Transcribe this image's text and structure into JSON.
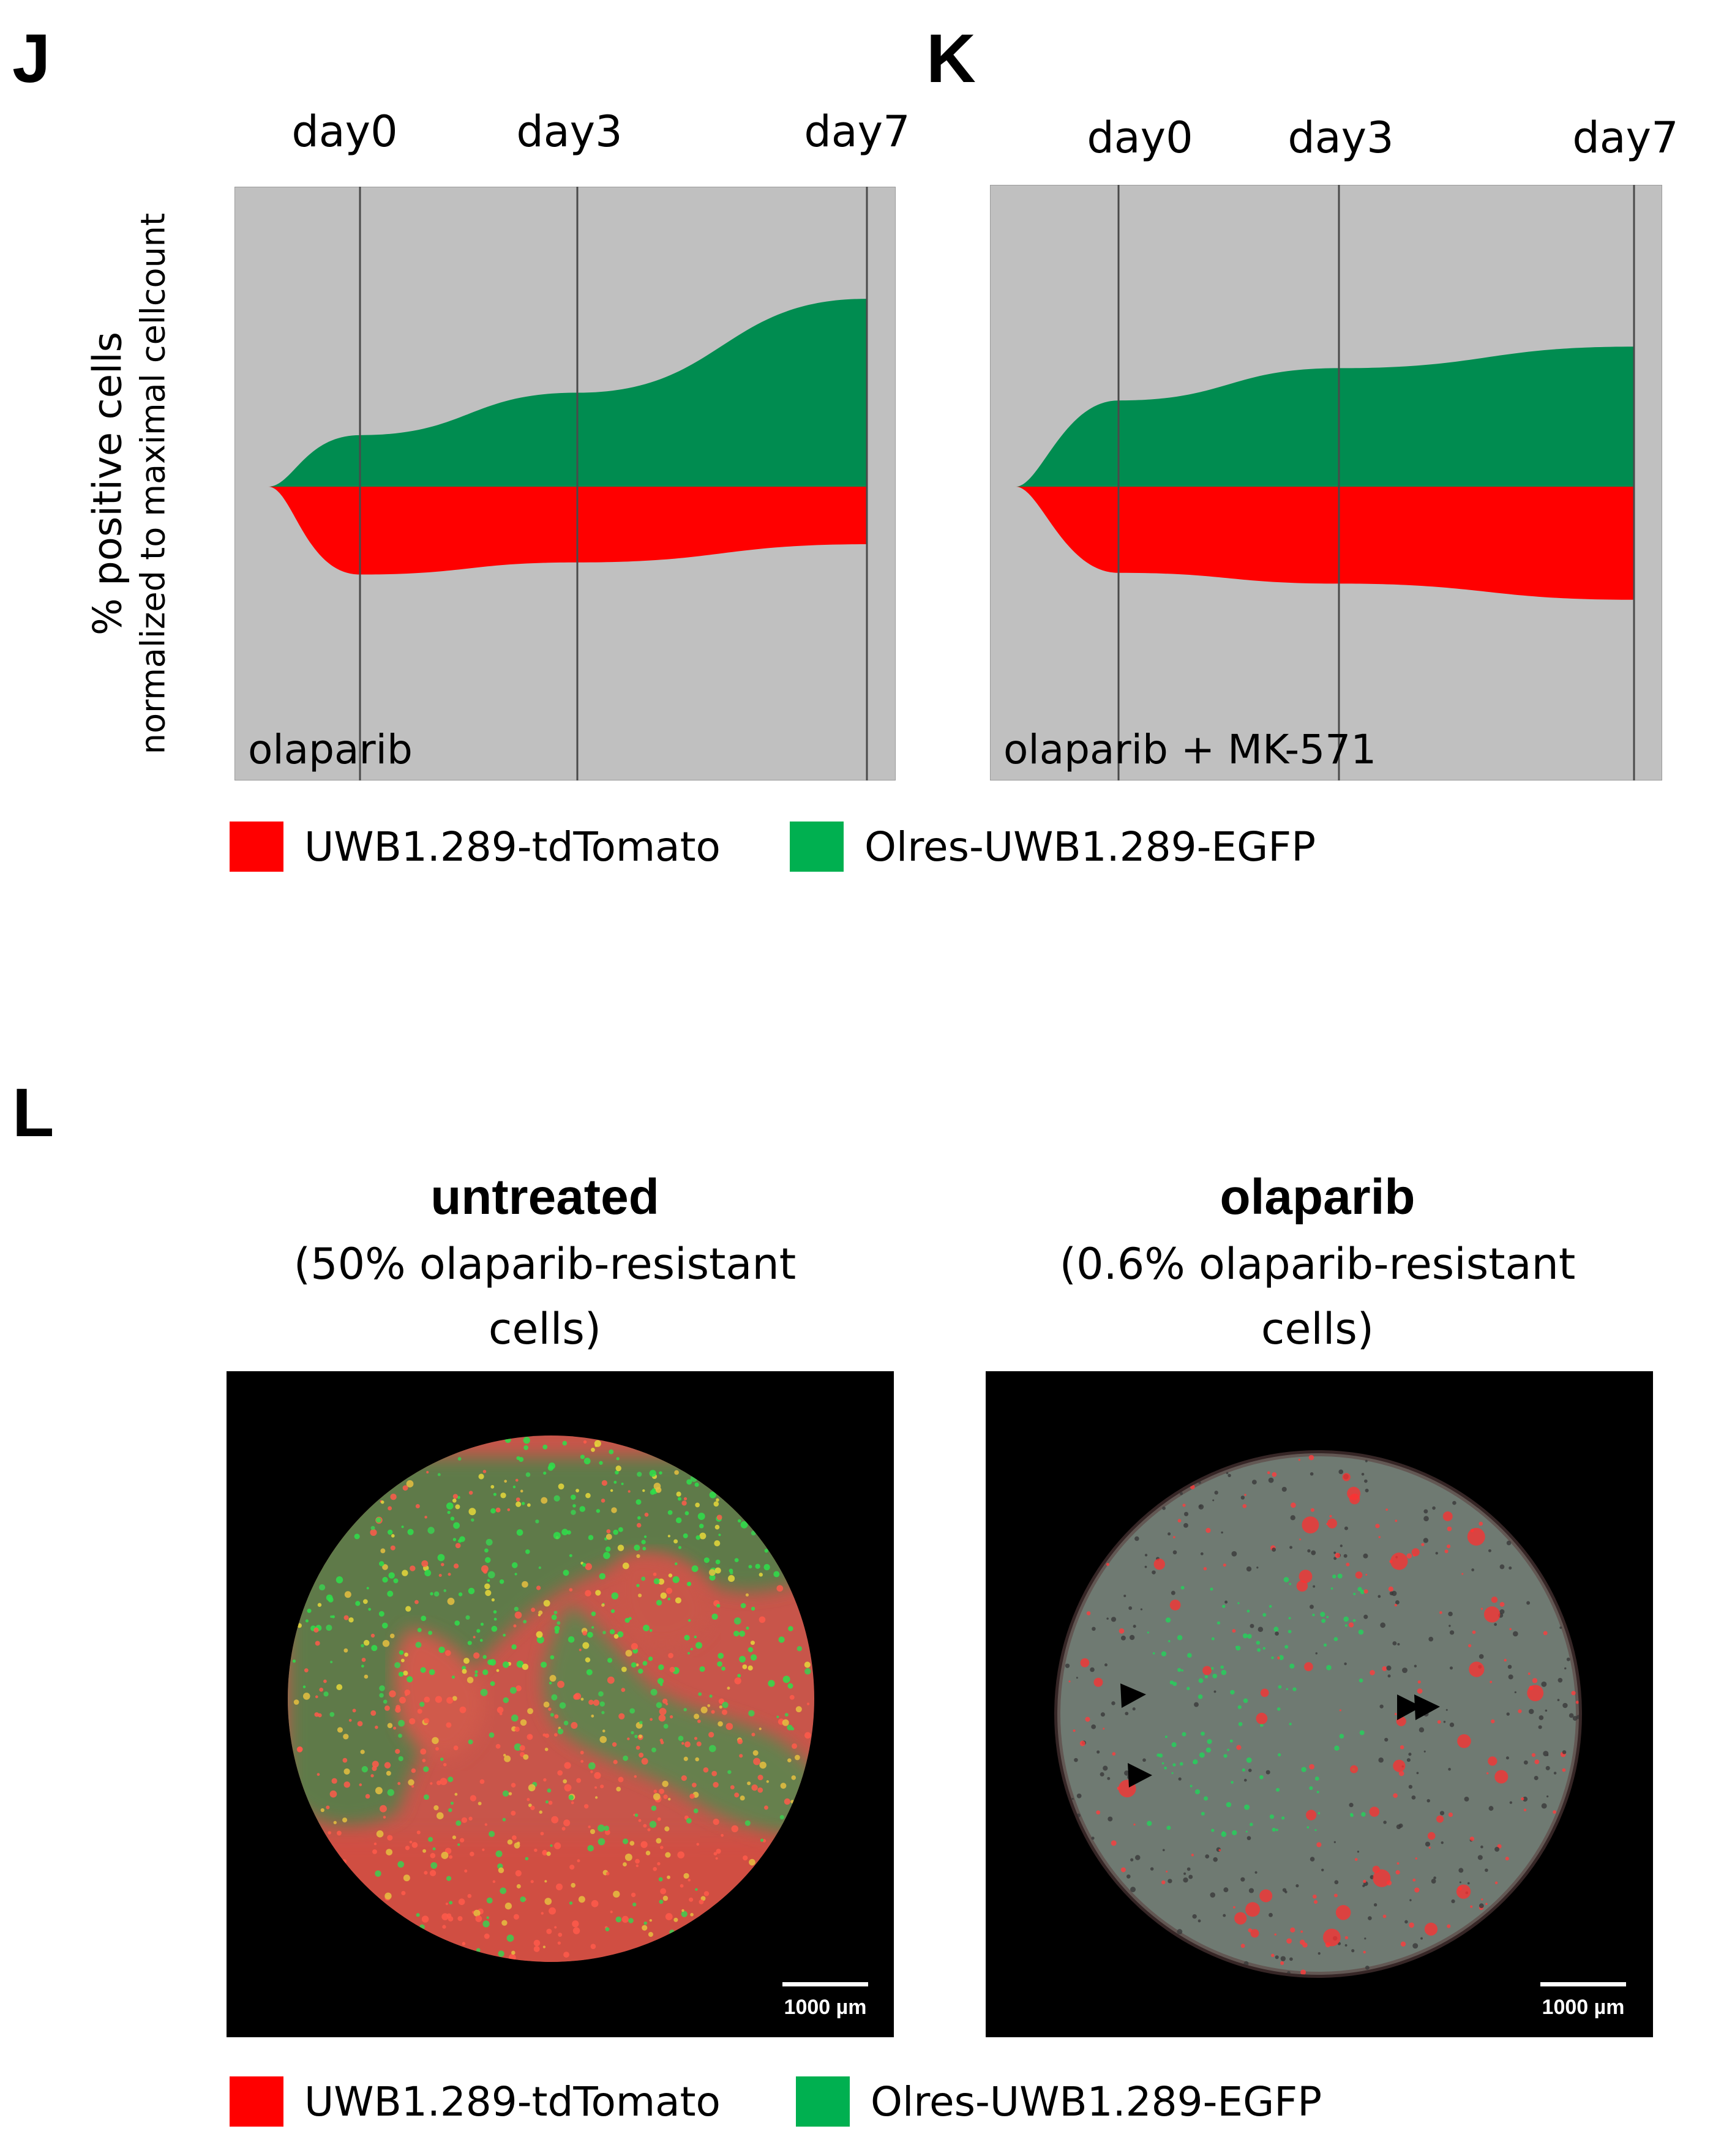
{
  "panels": {
    "J": {
      "label": "J",
      "treatment": "olaparib",
      "days": [
        "day0",
        "day3",
        "day7"
      ],
      "ylabel_line1": "% positive cells",
      "ylabel_line2": "normalized to maximal cellcount"
    },
    "K": {
      "label": "K",
      "treatment": "olaparib + MK-571",
      "days": [
        "day0",
        "day3",
        "day7"
      ]
    },
    "L": {
      "label": "L",
      "images": [
        {
          "title": "untreated",
          "subtitle_line1": "(50% olaparib-resistant",
          "subtitle_line2": "cells)",
          "scale_label": "1000 µm"
        },
        {
          "title": "olaparib",
          "subtitle_line1": "(0.6% olaparib-resistant",
          "subtitle_line2": "cells)",
          "scale_label": "1000 µm"
        }
      ]
    }
  },
  "legend": {
    "red_label": "UWB1.289-tdTomato",
    "green_label": "Olres-UWB1.289-EGFP"
  },
  "colors": {
    "red": "#ff0000",
    "green": "#008c50",
    "legend_green": "#00b050",
    "background": "#c0c0c0"
  },
  "chart_data": [
    {
      "type": "area",
      "title": "olaparib",
      "x": [
        "day0",
        "day3",
        "day7"
      ],
      "series": [
        {
          "name": "UWB1.289-tdTomato",
          "values": [
            29,
            25,
            19
          ]
        },
        {
          "name": "Olres-UWB1.289-EGFP",
          "values": [
            17,
            31,
            62
          ]
        }
      ]
    },
    {
      "type": "area",
      "title": "olaparib + MK-571",
      "x": [
        "day0",
        "day3",
        "day7"
      ],
      "series": [
        {
          "name": "UWB1.289-tdTomato",
          "values": [
            32,
            36,
            42
          ]
        },
        {
          "name": "Olres-UWB1.289-EGFP",
          "values": [
            32,
            44,
            52
          ]
        }
      ]
    }
  ]
}
